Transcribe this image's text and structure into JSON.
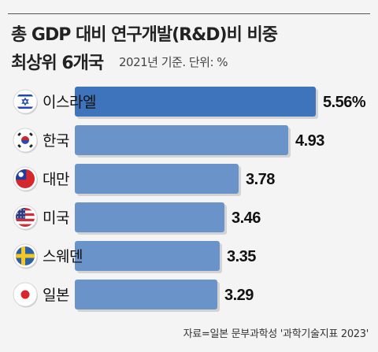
{
  "title_line1": "총 GDP 대비 연구개발(R&D)비 비중",
  "title_line2": "최상위 6개국",
  "note": "2021년 기준. 단위: %",
  "source": "자료=일본 문부과학성 '과학기술지표 2023'",
  "colors": {
    "bar_top": "#3d74bb",
    "bar": "#6a93c9",
    "bar_shadow": "#d3d3d3",
    "background": "#f4f4f4"
  },
  "chart_data": {
    "type": "bar",
    "orientation": "horizontal",
    "categories": [
      "이스라엘",
      "한국",
      "대만",
      "미국",
      "스웨덴",
      "일본"
    ],
    "flags": [
      "israel-flag-icon",
      "korea-flag-icon",
      "taiwan-flag-icon",
      "usa-flag-icon",
      "sweden-flag-icon",
      "japan-flag-icon"
    ],
    "values": [
      5.56,
      4.93,
      3.78,
      3.46,
      3.35,
      3.29
    ],
    "value_labels": [
      "5.56%",
      "4.93",
      "3.78",
      "3.46",
      "3.35",
      "3.29"
    ],
    "unit": "%",
    "xlim": [
      0,
      5.56
    ],
    "grid": false,
    "legend": "none"
  }
}
